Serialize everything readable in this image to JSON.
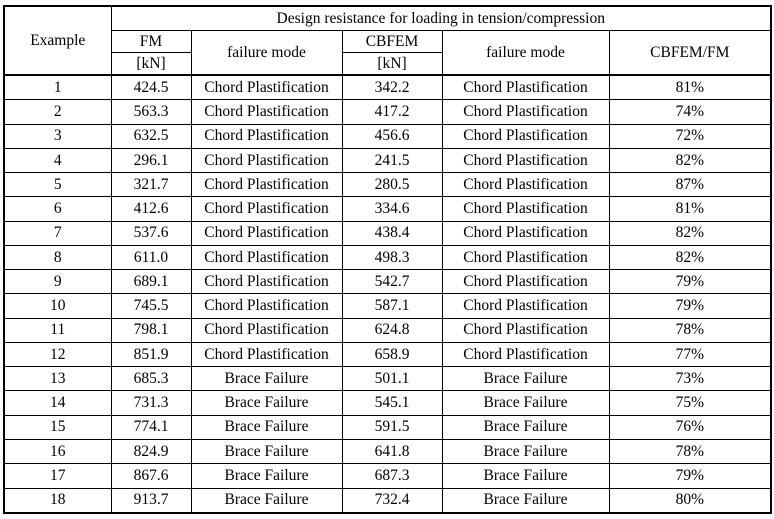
{
  "table": {
    "title": "Design resistance for loading in tension/compression",
    "headers": {
      "example": "Example",
      "fm": "FM",
      "fm_unit": "[kN]",
      "failure_mode_fm": "failure mode",
      "cbfem": "CBFEM",
      "cbfem_unit": "[kN]",
      "failure_mode_cbfem": "failure mode",
      "ratio": "CBFEM/FM"
    },
    "rows": [
      {
        "example": "1",
        "fm": "424.5",
        "failure_mode_fm": "Chord Plastification",
        "cbfem": "342.2",
        "failure_mode_cbfem": "Chord Plastification",
        "ratio": "81%"
      },
      {
        "example": "2",
        "fm": "563.3",
        "failure_mode_fm": "Chord Plastification",
        "cbfem": "417.2",
        "failure_mode_cbfem": "Chord Plastification",
        "ratio": "74%"
      },
      {
        "example": "3",
        "fm": "632.5",
        "failure_mode_fm": "Chord Plastification",
        "cbfem": "456.6",
        "failure_mode_cbfem": "Chord Plastification",
        "ratio": "72%"
      },
      {
        "example": "4",
        "fm": "296.1",
        "failure_mode_fm": "Chord Plastification",
        "cbfem": "241.5",
        "failure_mode_cbfem": "Chord Plastification",
        "ratio": "82%"
      },
      {
        "example": "5",
        "fm": "321.7",
        "failure_mode_fm": "Chord Plastification",
        "cbfem": "280.5",
        "failure_mode_cbfem": "Chord Plastification",
        "ratio": "87%"
      },
      {
        "example": "6",
        "fm": "412.6",
        "failure_mode_fm": "Chord Plastification",
        "cbfem": "334.6",
        "failure_mode_cbfem": "Chord Plastification",
        "ratio": "81%"
      },
      {
        "example": "7",
        "fm": "537.6",
        "failure_mode_fm": "Chord Plastification",
        "cbfem": "438.4",
        "failure_mode_cbfem": "Chord Plastification",
        "ratio": "82%"
      },
      {
        "example": "8",
        "fm": "611.0",
        "failure_mode_fm": "Chord Plastification",
        "cbfem": "498.3",
        "failure_mode_cbfem": "Chord Plastification",
        "ratio": "82%"
      },
      {
        "example": "9",
        "fm": "689.1",
        "failure_mode_fm": "Chord Plastification",
        "cbfem": "542.7",
        "failure_mode_cbfem": "Chord Plastification",
        "ratio": "79%"
      },
      {
        "example": "10",
        "fm": "745.5",
        "failure_mode_fm": "Chord Plastification",
        "cbfem": "587.1",
        "failure_mode_cbfem": "Chord Plastification",
        "ratio": "79%"
      },
      {
        "example": "11",
        "fm": "798.1",
        "failure_mode_fm": "Chord Plastification",
        "cbfem": "624.8",
        "failure_mode_cbfem": "Chord Plastification",
        "ratio": "78%"
      },
      {
        "example": "12",
        "fm": "851.9",
        "failure_mode_fm": "Chord Plastification",
        "cbfem": "658.9",
        "failure_mode_cbfem": "Chord Plastification",
        "ratio": "77%"
      },
      {
        "example": "13",
        "fm": "685.3",
        "failure_mode_fm": "Brace Failure",
        "cbfem": "501.1",
        "failure_mode_cbfem": "Brace Failure",
        "ratio": "73%"
      },
      {
        "example": "14",
        "fm": "731.3",
        "failure_mode_fm": "Brace Failure",
        "cbfem": "545.1",
        "failure_mode_cbfem": "Brace Failure",
        "ratio": "75%"
      },
      {
        "example": "15",
        "fm": "774.1",
        "failure_mode_fm": "Brace Failure",
        "cbfem": "591.5",
        "failure_mode_cbfem": "Brace Failure",
        "ratio": "76%"
      },
      {
        "example": "16",
        "fm": "824.9",
        "failure_mode_fm": "Brace Failure",
        "cbfem": "641.8",
        "failure_mode_cbfem": "Brace Failure",
        "ratio": "78%"
      },
      {
        "example": "17",
        "fm": "867.6",
        "failure_mode_fm": "Brace Failure",
        "cbfem": "687.3",
        "failure_mode_cbfem": "Brace Failure",
        "ratio": "79%"
      },
      {
        "example": "18",
        "fm": "913.7",
        "failure_mode_fm": "Brace Failure",
        "cbfem": "732.4",
        "failure_mode_cbfem": "Brace Failure",
        "ratio": "80%"
      }
    ]
  }
}
